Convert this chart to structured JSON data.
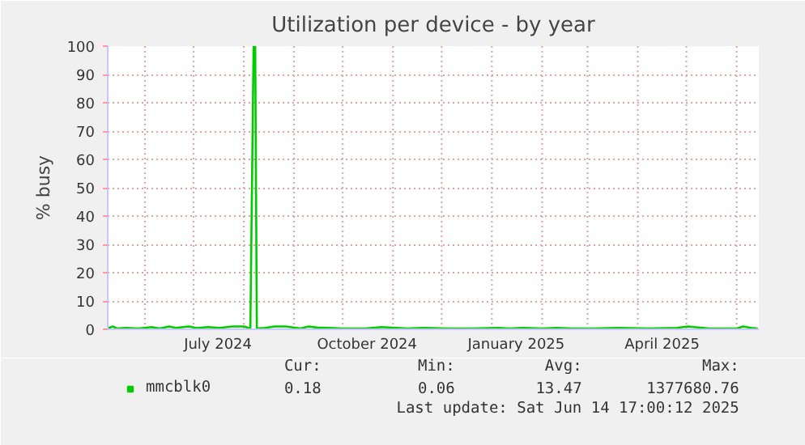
{
  "chart_data": {
    "type": "line",
    "title": "Utilization per device - by year",
    "ylabel": "% busy",
    "xlim": [
      "2024-05-09",
      "2025-06-14T17:00"
    ],
    "ylim": [
      0,
      100
    ],
    "xticks": [
      {
        "value": "2024-07-16",
        "label": "July 2024"
      },
      {
        "value": "2024-10-16",
        "label": "October 2024"
      },
      {
        "value": "2025-01-16",
        "label": "January 2025"
      },
      {
        "value": "2025-04-16",
        "label": "April 2025"
      }
    ],
    "yticks": [
      0,
      10,
      20,
      30,
      40,
      50,
      60,
      70,
      80,
      90,
      100
    ],
    "grid": true,
    "legend": "bottom",
    "series": [
      {
        "name": "mmcblk0",
        "color": "#00cc00",
        "x": [
          "2024-05-09",
          "2024-05-12",
          "2024-05-15",
          "2024-05-20",
          "2024-05-28",
          "2024-06-05",
          "2024-06-10",
          "2024-06-16",
          "2024-06-20",
          "2024-06-28",
          "2024-07-03",
          "2024-07-10",
          "2024-07-17",
          "2024-07-25",
          "2024-08-01",
          "2024-08-05",
          "2024-08-07",
          "2024-08-08",
          "2024-08-09",
          "2024-08-14",
          "2024-08-20",
          "2024-08-27",
          "2024-09-05",
          "2024-09-10",
          "2024-09-15",
          "2024-09-22",
          "2024-10-01",
          "2024-10-15",
          "2024-10-25",
          "2024-11-10",
          "2024-11-20",
          "2024-12-05",
          "2024-12-20",
          "2025-01-05",
          "2025-01-12",
          "2025-01-20",
          "2025-02-01",
          "2025-02-10",
          "2025-02-20",
          "2025-03-05",
          "2025-03-20",
          "2025-04-08",
          "2025-04-25",
          "2025-05-02",
          "2025-05-15",
          "2025-06-01",
          "2025-06-05",
          "2025-06-10",
          "2025-06-14"
        ],
        "values": [
          0.3,
          1,
          0.3,
          0.5,
          0.3,
          0.8,
          0.3,
          1,
          0.5,
          1,
          0.4,
          0.8,
          0.5,
          1,
          1,
          0.3,
          100,
          100,
          0.3,
          0.5,
          1,
          1,
          0.3,
          1,
          0.6,
          0.5,
          0.3,
          0.3,
          0.8,
          0.3,
          0.5,
          0.3,
          0.3,
          0.5,
          0.3,
          0.5,
          0.3,
          0.5,
          0.3,
          0.3,
          0.5,
          0.3,
          0.5,
          1,
          0.3,
          0.3,
          1,
          0.5,
          0.3
        ]
      }
    ],
    "annotations": [
      "Cur:",
      "Min:",
      "Avg:",
      "Max:",
      "0.18",
      "0.06",
      "13.47",
      "1377680.76",
      "Last update: Sat Jun 14 17:00:12 2025"
    ]
  }
}
